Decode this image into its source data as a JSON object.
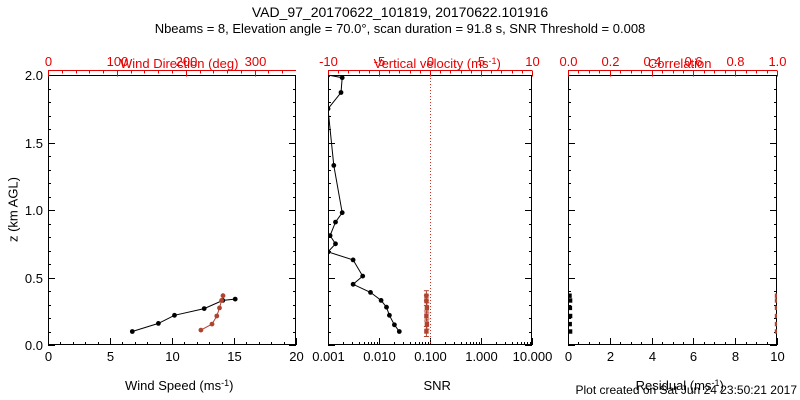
{
  "header": {
    "title": "VAD_97_20170622_101819, 20170622.101916",
    "subtitle": "Nbeams = 8, Elevation angle = 70.0°, scan duration = 91.8 s, SNR Threshold = 0.008"
  },
  "footer": {
    "created": "Plot created on Sat Jun 24 23:50:21 2017"
  },
  "colors": {
    "axis_red": "#e60000",
    "data_red": "#b0432f",
    "refline_red": "#cc3322",
    "black": "#000000"
  },
  "y_axis_title": {
    "pre": "z (km AGL)"
  },
  "chart_data": [
    {
      "type": "line",
      "name": "wind",
      "y": {
        "min": 0,
        "max": 2,
        "major": [
          0,
          0.5,
          1,
          1.5,
          2
        ],
        "labels": [
          "0.0",
          "0.5",
          "1.0",
          "1.5",
          "2.0"
        ],
        "minor_step": 0.1,
        "show_labels": true
      },
      "x_bottom": {
        "scale": "linear",
        "min": 0,
        "max": 20,
        "major": [
          0,
          5,
          10,
          15,
          20
        ],
        "labels": [
          "0",
          "5",
          "10",
          "15",
          "20"
        ],
        "minor_step": 1
      },
      "bottom_title": {
        "pre": "Wind Speed (ms",
        "sup": "-1",
        "post": ")"
      },
      "x_top": {
        "scale": "linear",
        "min": 0,
        "max": 360,
        "major": [
          0,
          100,
          200,
          300
        ],
        "labels": [
          "0",
          "100",
          "200",
          "300"
        ],
        "minor_step": 20
      },
      "top_title": {
        "pre": "Wind Direction (deg)",
        "sup": "",
        "post": ""
      },
      "series": [
        {
          "name": "wind-speed",
          "axis": "bottom",
          "color": "#000000",
          "marker": "circle",
          "line": true,
          "points": [
            [
              6.8,
              0.1
            ],
            [
              8.9,
              0.16
            ],
            [
              10.2,
              0.22
            ],
            [
              12.6,
              0.27
            ],
            [
              14.1,
              0.33
            ],
            [
              15.1,
              0.34
            ]
          ]
        },
        {
          "name": "wind-direction",
          "axis": "top",
          "color": "#b0432f",
          "marker": "circle",
          "line": true,
          "points": [
            [
              222,
              0.11
            ],
            [
              238,
              0.155
            ],
            [
              245,
              0.215
            ],
            [
              249,
              0.275
            ],
            [
              252,
              0.33
            ],
            [
              254,
              0.365
            ]
          ]
        }
      ]
    },
    {
      "type": "line",
      "name": "snr",
      "y": {
        "min": 0,
        "max": 2,
        "major": [
          0,
          0.5,
          1,
          1.5,
          2
        ],
        "labels": [],
        "minor_step": 0.1,
        "show_labels": false
      },
      "x_bottom": {
        "scale": "log",
        "min": 0.001,
        "max": 10,
        "major": [
          0.001,
          0.01,
          0.1,
          1,
          10
        ],
        "labels": [
          "0.001",
          "0.010",
          "0.100",
          "1.000",
          "10.000"
        ]
      },
      "bottom_title": {
        "pre": "SNR",
        "sup": "",
        "post": ""
      },
      "x_top": {
        "scale": "linear",
        "min": -10,
        "max": 10,
        "major": [
          -10,
          -5,
          0,
          5,
          10
        ],
        "labels": [
          "-10",
          "-5",
          "0",
          "5",
          "10"
        ],
        "minor_step": 1
      },
      "top_title": {
        "pre": "Vertical velocity (ms",
        "sup": "-1",
        "post": ")"
      },
      "refline": {
        "axis": "top",
        "value": 0
      },
      "series": [
        {
          "name": "snr-profile",
          "axis": "bottom",
          "color": "#000000",
          "marker": "circle",
          "line": true,
          "points": [
            [
              0.001,
              2.0
            ],
            [
              0.0019,
              1.98
            ],
            [
              0.0018,
              1.87
            ],
            [
              0.001,
              1.75
            ],
            [
              0.0013,
              1.33
            ],
            [
              0.0019,
              0.98
            ],
            [
              0.0014,
              0.91
            ],
            [
              0.0011,
              0.81
            ],
            [
              0.0014,
              0.75
            ],
            [
              0.001,
              0.69
            ],
            [
              0.0031,
              0.63
            ],
            [
              0.0048,
              0.51
            ],
            [
              0.0031,
              0.45
            ],
            [
              0.0068,
              0.39
            ],
            [
              0.011,
              0.33
            ],
            [
              0.014,
              0.28
            ],
            [
              0.016,
              0.22
            ],
            [
              0.02,
              0.15
            ],
            [
              0.025,
              0.1
            ]
          ]
        },
        {
          "name": "vertical-velocity",
          "axis": "top",
          "color": "#b0432f",
          "marker": "errsquare",
          "line": false,
          "points": [
            [
              -0.35,
              0.365
            ],
            [
              -0.35,
              0.33
            ],
            [
              -0.3,
              0.275
            ],
            [
              -0.35,
              0.215
            ],
            [
              -0.3,
              0.155
            ],
            [
              -0.35,
              0.1
            ]
          ]
        }
      ]
    },
    {
      "type": "scatter",
      "name": "residual",
      "y": {
        "min": 0,
        "max": 2,
        "major": [
          0,
          0.5,
          1,
          1.5,
          2
        ],
        "labels": [],
        "minor_step": 0.1,
        "show_labels": false
      },
      "x_bottom": {
        "scale": "linear",
        "min": 0,
        "max": 10,
        "major": [
          0,
          2,
          4,
          6,
          8,
          10
        ],
        "labels": [
          "0",
          "2",
          "4",
          "6",
          "8",
          "10"
        ],
        "minor_step": 0.5
      },
      "bottom_title": {
        "pre": "Residual (ms",
        "sup": "-1",
        "post": ")"
      },
      "x_top": {
        "scale": "linear",
        "min": 0,
        "max": 1,
        "major": [
          0,
          0.2,
          0.4,
          0.6,
          0.8,
          1
        ],
        "labels": [
          "0.0",
          "0.2",
          "0.4",
          "0.6",
          "0.8",
          "1.0"
        ],
        "minor_step": 0.05
      },
      "top_title": {
        "pre": "Correlation",
        "sup": "",
        "post": ""
      },
      "series": [
        {
          "name": "residual",
          "axis": "bottom",
          "color": "#000000",
          "marker": "square",
          "line": false,
          "points": [
            [
              0.1,
              0.1
            ],
            [
              0.08,
              0.155
            ],
            [
              0.1,
              0.215
            ],
            [
              0.09,
              0.275
            ],
            [
              0.1,
              0.33
            ],
            [
              0.07,
              0.365
            ]
          ]
        },
        {
          "name": "correlation",
          "axis": "top",
          "color": "#b0432f",
          "marker": "square",
          "line": false,
          "points": [
            [
              1.0,
              0.1
            ],
            [
              1.0,
              0.155
            ],
            [
              1.0,
              0.215
            ],
            [
              1.0,
              0.275
            ],
            [
              1.0,
              0.33
            ],
            [
              1.0,
              0.365
            ]
          ]
        }
      ]
    }
  ]
}
